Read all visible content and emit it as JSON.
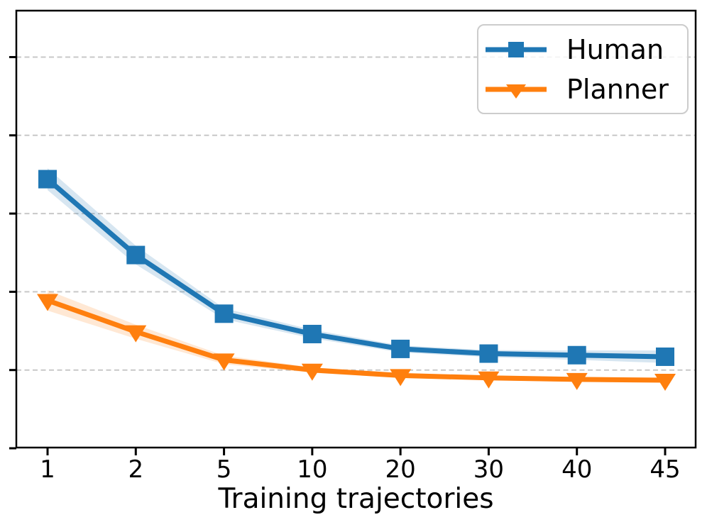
{
  "chart_data": {
    "type": "line",
    "title": "",
    "xlabel": "Training trajectories",
    "ylabel": "",
    "categories": [
      "1",
      "2",
      "5",
      "10",
      "20",
      "30",
      "40",
      "45"
    ],
    "x_axis": {
      "label": "Training trajectories",
      "scale": "categorical-equal-spacing"
    },
    "y_axis": {
      "labels_visible": false,
      "unit": "unlabeled (gridline spacing = 1)",
      "ylim": [
        0,
        5.6
      ],
      "tick_values": [
        0,
        1,
        2,
        3,
        4,
        5
      ],
      "gridlines_at": [
        1,
        2,
        3,
        4,
        5
      ]
    },
    "grid": {
      "axis": "y",
      "style": "dashed",
      "color": "#c8c8c8"
    },
    "legend": {
      "position": "upper-right",
      "frame": true
    },
    "series": [
      {
        "name": "Human",
        "color": "#1f77b4",
        "marker": "square",
        "values": [
          3.44,
          2.47,
          1.72,
          1.46,
          1.27,
          1.21,
          1.19,
          1.17
        ],
        "band_halfwidth": [
          0.14,
          0.12,
          0.07,
          0.055,
          0.045,
          0.045,
          0.06,
          0.08
        ]
      },
      {
        "name": "Planner",
        "color": "#ff7f0e",
        "marker": "triangle-down",
        "values": [
          1.89,
          1.49,
          1.13,
          1.0,
          0.93,
          0.9,
          0.88,
          0.87
        ],
        "band_halfwidth": [
          0.13,
          0.09,
          0.055,
          0.035,
          0.03,
          0.03,
          0.03,
          0.03
        ]
      }
    ]
  },
  "colors": {
    "spine": "#000000",
    "grid": "#c8c8c8",
    "tick": "#000000",
    "text": "#000000",
    "legend_border": "#cccccc",
    "band_opacity": "0.18"
  }
}
